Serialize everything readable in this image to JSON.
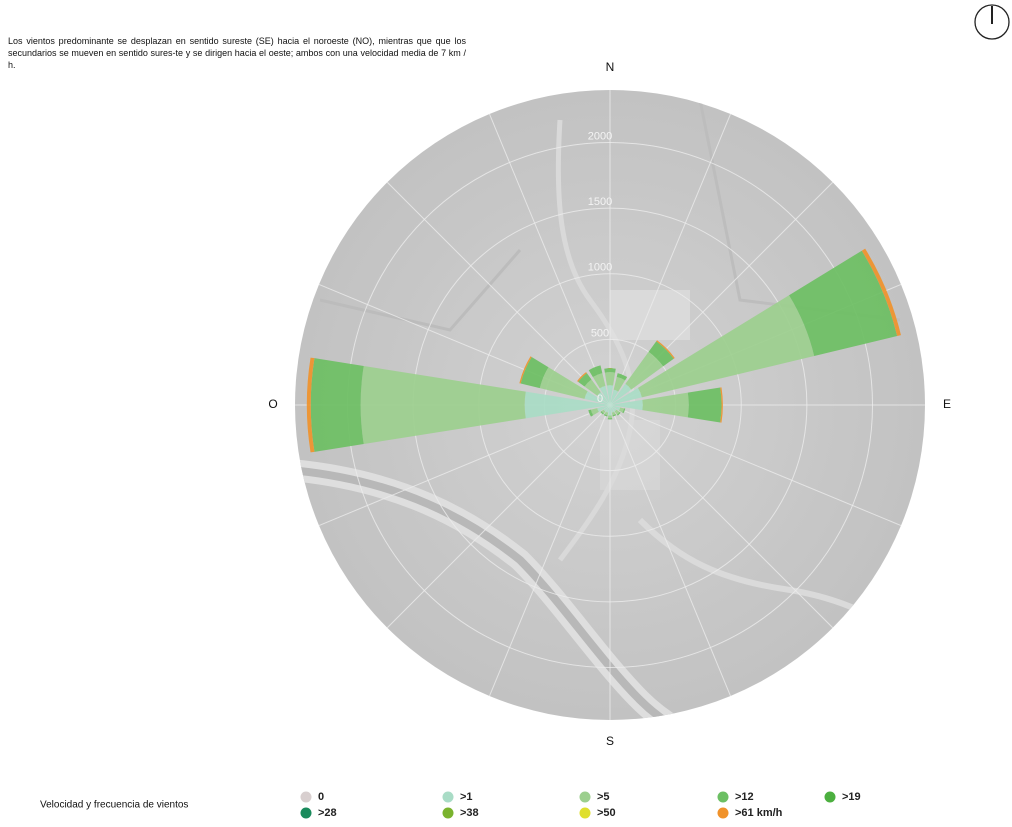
{
  "chart_data": {
    "type": "wind-rose",
    "description": "Los vientos predominante se desplazan en sentido sureste (SE) hacia el noroeste (NO), mientras que que los secundarios se mueven en sentido sures-te y se dirigen hacia el oeste; ambos con una velocidad media de 7 km / h.",
    "legend_title": "Velocidad y frecuencia de vientos",
    "x": [
      0,
      22.5,
      45,
      67.5,
      90,
      112.5,
      135,
      157.5,
      180,
      202.5,
      225,
      247.5,
      270,
      292.5,
      315,
      337.5
    ],
    "xticks": [
      {
        "value": 0,
        "label": "N"
      },
      {
        "value": 90,
        "label": "E"
      },
      {
        "value": 180,
        "label": "S"
      },
      {
        "value": 270,
        "label": "O"
      }
    ],
    "ylim": [
      0,
      2400
    ],
    "yticks": [
      0,
      500,
      1000,
      1500,
      2000
    ],
    "grid": true,
    "series": [
      {
        "name": "0",
        "color": "#d8cfcf",
        "values": [
          0,
          0,
          0,
          0,
          0,
          0,
          0,
          0,
          0,
          0,
          0,
          0,
          0,
          0,
          0,
          0
        ]
      },
      {
        "name": ">1",
        "color": "#a9dcc6",
        "values": [
          150,
          120,
          200,
          250,
          250,
          80,
          60,
          60,
          80,
          60,
          60,
          100,
          650,
          200,
          120,
          150
        ]
      },
      {
        "name": ">5",
        "color": "#9ccf8e",
        "values": [
          100,
          100,
          300,
          1350,
          350,
          30,
          30,
          20,
          20,
          20,
          20,
          50,
          1250,
          350,
          120,
          100
        ]
      },
      {
        "name": ">12",
        "color": "#6cbf63",
        "values": [
          30,
          30,
          100,
          650,
          250,
          10,
          10,
          10,
          10,
          10,
          10,
          20,
          380,
          150,
          60,
          60
        ]
      },
      {
        "name": ">19",
        "color": "#4caf3f",
        "values": [
          0,
          0,
          0,
          0,
          0,
          0,
          0,
          0,
          0,
          0,
          0,
          0,
          0,
          0,
          0,
          0
        ]
      },
      {
        "name": ">28",
        "color": "#1a8a5c",
        "values": [
          0,
          0,
          0,
          0,
          0,
          0,
          0,
          0,
          0,
          0,
          0,
          0,
          0,
          0,
          0,
          0
        ]
      },
      {
        "name": ">38",
        "color": "#7ab32e",
        "values": [
          0,
          0,
          0,
          0,
          0,
          0,
          0,
          0,
          0,
          0,
          0,
          0,
          0,
          0,
          0,
          0
        ]
      },
      {
        "name": ">50",
        "color": "#dfdf2e",
        "values": [
          0,
          0,
          0,
          0,
          0,
          0,
          0,
          0,
          0,
          0,
          0,
          0,
          0,
          0,
          0,
          0
        ]
      },
      {
        "name": ">61 km/h",
        "color": "#f0922b",
        "values": [
          0,
          0,
          10,
          30,
          10,
          0,
          0,
          0,
          0,
          0,
          0,
          0,
          30,
          10,
          10,
          0
        ]
      }
    ]
  }
}
